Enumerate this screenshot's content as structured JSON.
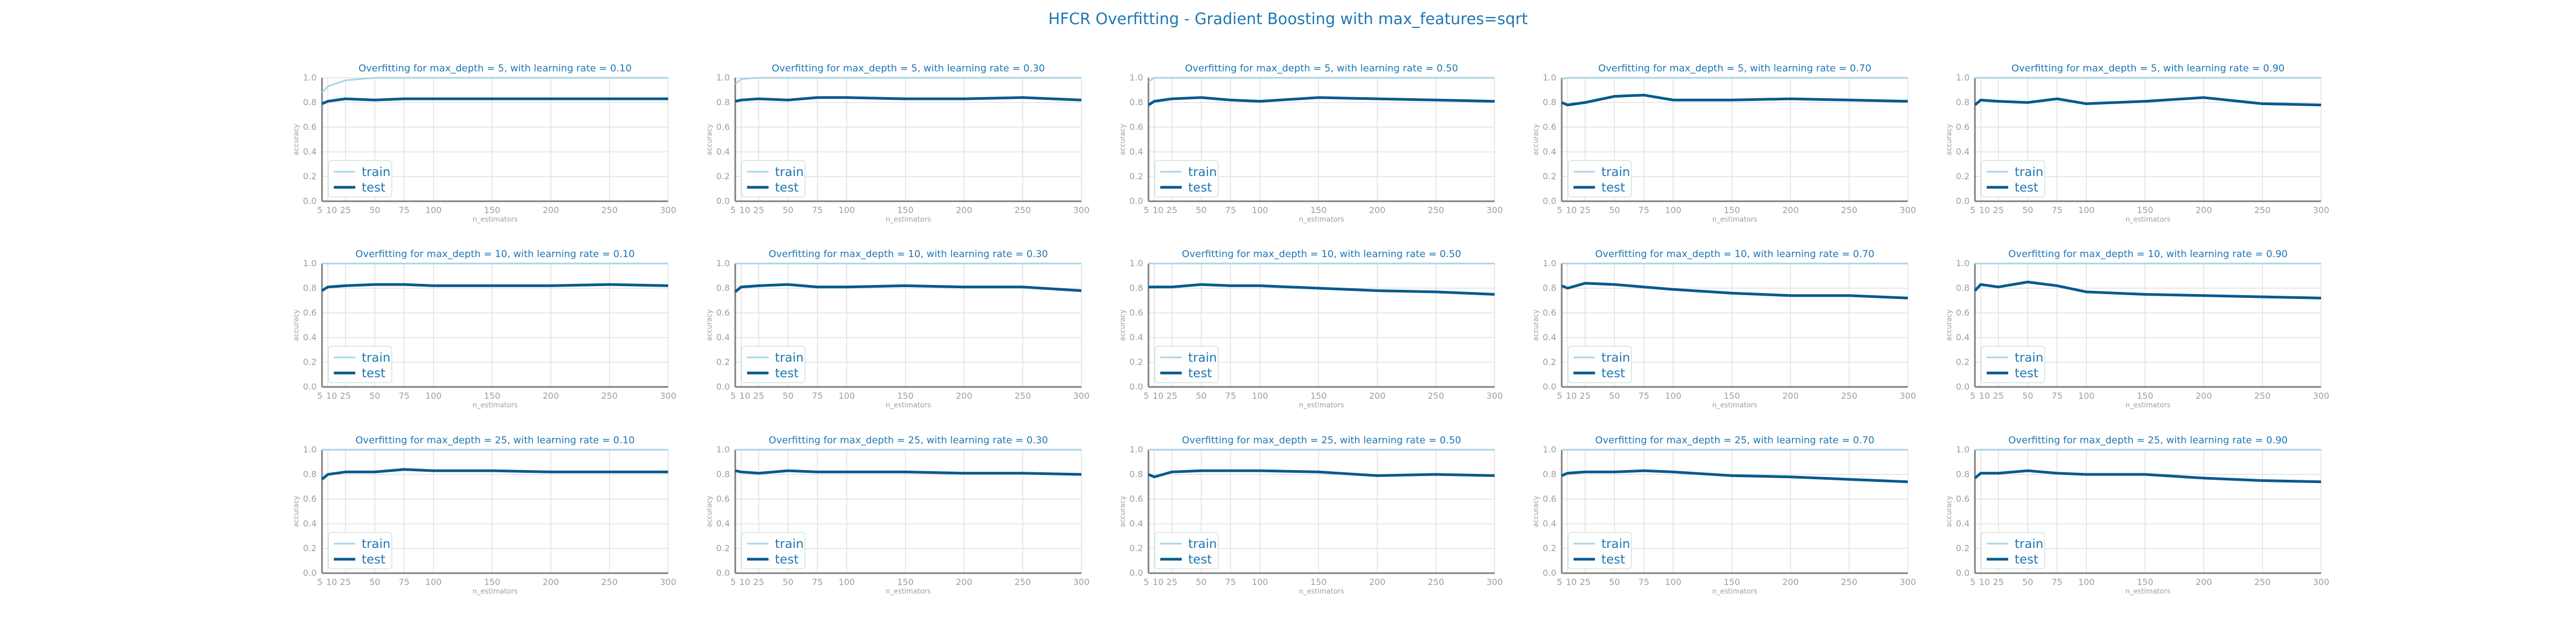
{
  "suptitle": "HFCR Overfitting - Gradient Boosting with max_features=sqrt",
  "colors": {
    "accent": "#1f77b4",
    "train": "#a6d4e8",
    "test": "#045a8d",
    "grid": "#d9d9d9",
    "axis": "#7f7f7f",
    "tick": "#9e9e9e",
    "legend_border": "#cfe4dc"
  },
  "chart_data": [
    {
      "type": "line",
      "title": "Overfitting for max_depth = 5, with learning rate = 0.10",
      "xlabel": "n_estimators",
      "ylabel": "accuracy",
      "xlim": [
        5,
        300
      ],
      "ylim": [
        0,
        1
      ],
      "x": [
        5,
        10,
        25,
        50,
        75,
        100,
        150,
        200,
        250,
        300
      ],
      "legend": "lower-left",
      "grid": true,
      "series": [
        {
          "name": "train",
          "values": [
            0.88,
            0.93,
            0.98,
            1,
            1,
            1,
            1,
            1,
            1,
            1
          ]
        },
        {
          "name": "test",
          "values": [
            0.79,
            0.81,
            0.83,
            0.82,
            0.83,
            0.83,
            0.83,
            0.83,
            0.83,
            0.83
          ]
        }
      ]
    },
    {
      "type": "line",
      "title": "Overfitting for max_depth = 5, with learning rate = 0.30",
      "xlabel": "n_estimators",
      "ylabel": "accuracy",
      "xlim": [
        5,
        300
      ],
      "ylim": [
        0,
        1
      ],
      "x": [
        5,
        10,
        25,
        50,
        75,
        100,
        150,
        200,
        250,
        300
      ],
      "legend": "lower-left",
      "grid": true,
      "series": [
        {
          "name": "train",
          "values": [
            0.95,
            0.99,
            1,
            1,
            1,
            1,
            1,
            1,
            1,
            1
          ]
        },
        {
          "name": "test",
          "values": [
            0.81,
            0.82,
            0.83,
            0.82,
            0.84,
            0.84,
            0.83,
            0.83,
            0.84,
            0.82
          ]
        }
      ]
    },
    {
      "type": "line",
      "title": "Overfitting for max_depth = 5, with learning rate = 0.50",
      "xlabel": "n_estimators",
      "ylabel": "accuracy",
      "xlim": [
        5,
        300
      ],
      "ylim": [
        0,
        1
      ],
      "x": [
        5,
        10,
        25,
        50,
        75,
        100,
        150,
        200,
        250,
        300
      ],
      "legend": "lower-left",
      "grid": true,
      "series": [
        {
          "name": "train",
          "values": [
            0.97,
            1,
            1,
            1,
            1,
            1,
            1,
            1,
            1,
            1
          ]
        },
        {
          "name": "test",
          "values": [
            0.78,
            0.81,
            0.83,
            0.84,
            0.82,
            0.81,
            0.84,
            0.83,
            0.82,
            0.81
          ]
        }
      ]
    },
    {
      "type": "line",
      "title": "Overfitting for max_depth = 5, with learning rate = 0.70",
      "xlabel": "n_estimators",
      "ylabel": "accuracy",
      "xlim": [
        5,
        300
      ],
      "ylim": [
        0,
        1
      ],
      "x": [
        5,
        10,
        25,
        50,
        75,
        100,
        150,
        200,
        250,
        300
      ],
      "legend": "lower-left",
      "grid": true,
      "series": [
        {
          "name": "train",
          "values": [
            0.99,
            1,
            1,
            1,
            1,
            1,
            1,
            1,
            1,
            1
          ]
        },
        {
          "name": "test",
          "values": [
            0.8,
            0.78,
            0.8,
            0.85,
            0.86,
            0.82,
            0.82,
            0.83,
            0.82,
            0.81
          ]
        }
      ]
    },
    {
      "type": "line",
      "title": "Overfitting for max_depth = 5, with learning rate = 0.90",
      "xlabel": "n_estimators",
      "ylabel": "accuracy",
      "xlim": [
        5,
        300
      ],
      "ylim": [
        0,
        1
      ],
      "x": [
        5,
        10,
        25,
        50,
        75,
        100,
        150,
        200,
        250,
        300
      ],
      "legend": "lower-left",
      "grid": true,
      "series": [
        {
          "name": "train",
          "values": [
            1,
            1,
            1,
            1,
            1,
            1,
            1,
            1,
            1,
            1
          ]
        },
        {
          "name": "test",
          "values": [
            0.78,
            0.82,
            0.81,
            0.8,
            0.83,
            0.79,
            0.81,
            0.84,
            0.79,
            0.78
          ]
        }
      ]
    },
    {
      "type": "line",
      "title": "Overfitting for max_depth = 10, with learning rate = 0.10",
      "xlabel": "n_estimators",
      "ylabel": "accuracy",
      "xlim": [
        5,
        300
      ],
      "ylim": [
        0,
        1
      ],
      "x": [
        5,
        10,
        25,
        50,
        75,
        100,
        150,
        200,
        250,
        300
      ],
      "legend": "lower-left",
      "grid": true,
      "series": [
        {
          "name": "train",
          "values": [
            1,
            1,
            1,
            1,
            1,
            1,
            1,
            1,
            1,
            1
          ]
        },
        {
          "name": "test",
          "values": [
            0.78,
            0.81,
            0.82,
            0.83,
            0.83,
            0.82,
            0.82,
            0.82,
            0.83,
            0.82
          ]
        }
      ]
    },
    {
      "type": "line",
      "title": "Overfitting for max_depth = 10, with learning rate = 0.30",
      "xlabel": "n_estimators",
      "ylabel": "accuracy",
      "xlim": [
        5,
        300
      ],
      "ylim": [
        0,
        1
      ],
      "x": [
        5,
        10,
        25,
        50,
        75,
        100,
        150,
        200,
        250,
        300
      ],
      "legend": "lower-left",
      "grid": true,
      "series": [
        {
          "name": "train",
          "values": [
            1,
            1,
            1,
            1,
            1,
            1,
            1,
            1,
            1,
            1
          ]
        },
        {
          "name": "test",
          "values": [
            0.77,
            0.81,
            0.82,
            0.83,
            0.81,
            0.81,
            0.82,
            0.81,
            0.81,
            0.78
          ]
        }
      ]
    },
    {
      "type": "line",
      "title": "Overfitting for max_depth = 10, with learning rate = 0.50",
      "xlabel": "n_estimators",
      "ylabel": "accuracy",
      "xlim": [
        5,
        300
      ],
      "ylim": [
        0,
        1
      ],
      "x": [
        5,
        10,
        25,
        50,
        75,
        100,
        150,
        200,
        250,
        300
      ],
      "legend": "lower-left",
      "grid": true,
      "series": [
        {
          "name": "train",
          "values": [
            1,
            1,
            1,
            1,
            1,
            1,
            1,
            1,
            1,
            1
          ]
        },
        {
          "name": "test",
          "values": [
            0.81,
            0.81,
            0.81,
            0.83,
            0.82,
            0.82,
            0.8,
            0.78,
            0.77,
            0.75
          ]
        }
      ]
    },
    {
      "type": "line",
      "title": "Overfitting for max_depth = 10, with learning rate = 0.70",
      "xlabel": "n_estimators",
      "ylabel": "accuracy",
      "xlim": [
        5,
        300
      ],
      "ylim": [
        0,
        1
      ],
      "x": [
        5,
        10,
        25,
        50,
        75,
        100,
        150,
        200,
        250,
        300
      ],
      "legend": "lower-left",
      "grid": true,
      "series": [
        {
          "name": "train",
          "values": [
            1,
            1,
            1,
            1,
            1,
            1,
            1,
            1,
            1,
            1
          ]
        },
        {
          "name": "test",
          "values": [
            0.82,
            0.8,
            0.84,
            0.83,
            0.81,
            0.79,
            0.76,
            0.74,
            0.74,
            0.72
          ]
        }
      ]
    },
    {
      "type": "line",
      "title": "Overfitting for max_depth = 10, with learning rate = 0.90",
      "xlabel": "n_estimators",
      "ylabel": "accuracy",
      "xlim": [
        5,
        300
      ],
      "ylim": [
        0,
        1
      ],
      "x": [
        5,
        10,
        25,
        50,
        75,
        100,
        150,
        200,
        250,
        300
      ],
      "legend": "lower-left",
      "grid": true,
      "series": [
        {
          "name": "train",
          "values": [
            1,
            1,
            1,
            1,
            1,
            1,
            1,
            1,
            1,
            1
          ]
        },
        {
          "name": "test",
          "values": [
            0.78,
            0.83,
            0.81,
            0.85,
            0.82,
            0.77,
            0.75,
            0.74,
            0.73,
            0.72
          ]
        }
      ]
    },
    {
      "type": "line",
      "title": "Overfitting for max_depth = 25, with learning rate = 0.10",
      "xlabel": "n_estimators",
      "ylabel": "accuracy",
      "xlim": [
        5,
        300
      ],
      "ylim": [
        0,
        1
      ],
      "x": [
        5,
        10,
        25,
        50,
        75,
        100,
        150,
        200,
        250,
        300
      ],
      "legend": "lower-left",
      "grid": true,
      "series": [
        {
          "name": "train",
          "values": [
            1,
            1,
            1,
            1,
            1,
            1,
            1,
            1,
            1,
            1
          ]
        },
        {
          "name": "test",
          "values": [
            0.76,
            0.8,
            0.82,
            0.82,
            0.84,
            0.83,
            0.83,
            0.82,
            0.82,
            0.82
          ]
        }
      ]
    },
    {
      "type": "line",
      "title": "Overfitting for max_depth = 25, with learning rate = 0.30",
      "xlabel": "n_estimators",
      "ylabel": "accuracy",
      "xlim": [
        5,
        300
      ],
      "ylim": [
        0,
        1
      ],
      "x": [
        5,
        10,
        25,
        50,
        75,
        100,
        150,
        200,
        250,
        300
      ],
      "legend": "lower-left",
      "grid": true,
      "series": [
        {
          "name": "train",
          "values": [
            1,
            1,
            1,
            1,
            1,
            1,
            1,
            1,
            1,
            1
          ]
        },
        {
          "name": "test",
          "values": [
            0.83,
            0.82,
            0.81,
            0.83,
            0.82,
            0.82,
            0.82,
            0.81,
            0.81,
            0.8
          ]
        }
      ]
    },
    {
      "type": "line",
      "title": "Overfitting for max_depth = 25, with learning rate = 0.50",
      "xlabel": "n_estimators",
      "ylabel": "accuracy",
      "xlim": [
        5,
        300
      ],
      "ylim": [
        0,
        1
      ],
      "x": [
        5,
        10,
        25,
        50,
        75,
        100,
        150,
        200,
        250,
        300
      ],
      "legend": "lower-left",
      "grid": true,
      "series": [
        {
          "name": "train",
          "values": [
            1,
            1,
            1,
            1,
            1,
            1,
            1,
            1,
            1,
            1
          ]
        },
        {
          "name": "test",
          "values": [
            0.8,
            0.78,
            0.82,
            0.83,
            0.83,
            0.83,
            0.82,
            0.79,
            0.8,
            0.79
          ]
        }
      ]
    },
    {
      "type": "line",
      "title": "Overfitting for max_depth = 25, with learning rate = 0.70",
      "xlabel": "n_estimators",
      "ylabel": "accuracy",
      "xlim": [
        5,
        300
      ],
      "ylim": [
        0,
        1
      ],
      "x": [
        5,
        10,
        25,
        50,
        75,
        100,
        150,
        200,
        250,
        300
      ],
      "legend": "lower-left",
      "grid": true,
      "series": [
        {
          "name": "train",
          "values": [
            1,
            1,
            1,
            1,
            1,
            1,
            1,
            1,
            1,
            1
          ]
        },
        {
          "name": "test",
          "values": [
            0.79,
            0.81,
            0.82,
            0.82,
            0.83,
            0.82,
            0.79,
            0.78,
            0.76,
            0.74
          ]
        }
      ]
    },
    {
      "type": "line",
      "title": "Overfitting for max_depth = 25, with learning rate = 0.90",
      "xlabel": "n_estimators",
      "ylabel": "accuracy",
      "xlim": [
        5,
        300
      ],
      "ylim": [
        0,
        1
      ],
      "x": [
        5,
        10,
        25,
        50,
        75,
        100,
        150,
        200,
        250,
        300
      ],
      "legend": "lower-left",
      "grid": true,
      "series": [
        {
          "name": "train",
          "values": [
            1,
            1,
            1,
            1,
            1,
            1,
            1,
            1,
            1,
            1
          ]
        },
        {
          "name": "test",
          "values": [
            0.77,
            0.81,
            0.81,
            0.83,
            0.81,
            0.8,
            0.8,
            0.77,
            0.75,
            0.74
          ]
        }
      ]
    }
  ],
  "xticks": [
    5,
    10,
    25,
    50,
    75,
    100,
    150,
    200,
    250,
    300
  ],
  "yticks": [
    0.0,
    0.2,
    0.4,
    0.6,
    0.8,
    1.0
  ]
}
